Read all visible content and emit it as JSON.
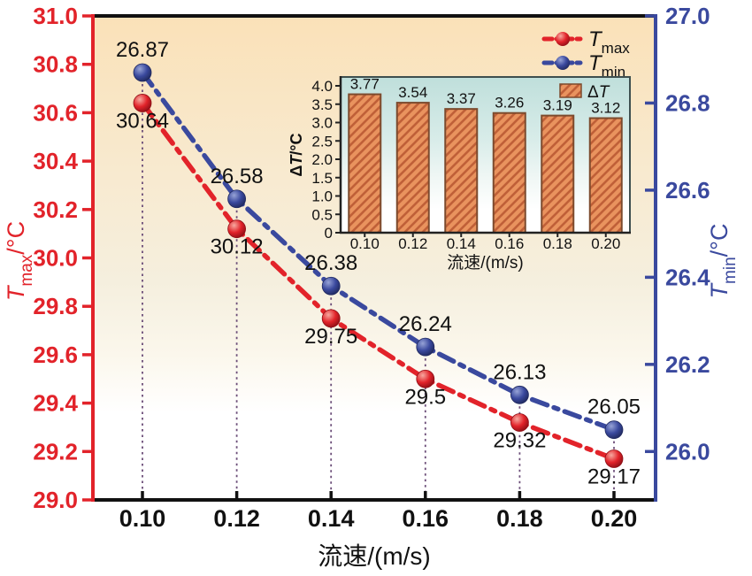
{
  "palette": {
    "red": "#e2232a",
    "blue": "#3a499e",
    "black": "#111111",
    "guide_line": "#6b4d78",
    "plot_bg_stops": [
      "#fae1b8",
      "#f8ead0",
      "#f5efde",
      "#fbf7ec",
      "#ffffff"
    ],
    "inset_bg_stops": [
      "#bfdfdb",
      "#d8ece9",
      "#f0f7f5",
      "#ffffff"
    ],
    "red_ball": [
      "#f6a9a0",
      "#e2232a",
      "#8f0f16"
    ],
    "blue_ball": [
      "#97a3d6",
      "#3a499e",
      "#20295e"
    ],
    "bar_fill": "#e9935e",
    "bar_hatch": "#c06038",
    "bar_border": "#7c4a2d",
    "inset_frame": "#3e4f4f",
    "inset_axis": "#222222"
  },
  "chart_data": {
    "main": {
      "type": "line",
      "x": [
        0.1,
        0.12,
        0.14,
        0.16,
        0.18,
        0.2
      ],
      "x_tick_labels": [
        "0.10",
        "0.12",
        "0.14",
        "0.16",
        "0.18",
        "0.20"
      ],
      "xlabel": "流速/(m/s)",
      "left_axis": {
        "label_parts": [
          {
            "t": "T",
            "i": true
          },
          {
            "t": "max",
            "sub": true
          },
          {
            "t": "/°C"
          }
        ],
        "min": 29.0,
        "max": 31.0,
        "tick_labels": [
          "31.0",
          "30.8",
          "30.6",
          "30.4",
          "30.2",
          "30.0",
          "29.8",
          "29.6",
          "29.4",
          "29.2",
          "29.0"
        ],
        "color": "#e2232a"
      },
      "right_axis": {
        "label_parts": [
          {
            "t": "T",
            "i": true
          },
          {
            "t": "min",
            "sub": true
          },
          {
            "t": "/°C"
          }
        ],
        "max": 27.0,
        "tick_labels": [
          "27.0",
          "26.8",
          "26.6",
          "26.4",
          "26.2",
          "26.0"
        ],
        "color": "#3a499e"
      },
      "series": [
        {
          "name_parts": [
            {
              "t": "T",
              "i": true
            },
            {
              "t": "max",
              "sub": true
            }
          ],
          "axis": "left",
          "color": "#e2232a",
          "ball": "red_ball",
          "values": [
            30.64,
            30.12,
            29.75,
            29.5,
            29.32,
            29.17
          ],
          "point_labels": [
            "30.64",
            "30.12",
            "29.75",
            "29.5",
            "29.32",
            "29.17"
          ],
          "label_side": "below"
        },
        {
          "name_parts": [
            {
              "t": "T",
              "i": true
            },
            {
              "t": "min",
              "sub": true
            }
          ],
          "axis": "right",
          "color": "#3a499e",
          "ball": "blue_ball",
          "values": [
            26.87,
            26.58,
            26.38,
            26.24,
            26.13,
            26.05
          ],
          "point_labels": [
            "26.87",
            "26.58",
            "26.38",
            "26.24",
            "26.13",
            "26.05"
          ],
          "label_side": "above"
        }
      ],
      "legend_position": "top-right",
      "grid": false
    },
    "inset": {
      "type": "bar",
      "categories": [
        "0.10",
        "0.12",
        "0.14",
        "0.16",
        "0.18",
        "0.20"
      ],
      "values": [
        3.77,
        3.54,
        3.37,
        3.26,
        3.19,
        3.12
      ],
      "value_labels": [
        "3.77",
        "3.54",
        "3.37",
        "3.26",
        "3.19",
        "3.12"
      ],
      "xlabel": "流速/(m/s)",
      "ylabel_parts": [
        {
          "t": "Δ"
        },
        {
          "t": "T",
          "i": true
        },
        {
          "t": "/°C"
        }
      ],
      "ylim": [
        0,
        4.0
      ],
      "y_tick_labels": [
        "0",
        "0.5",
        "1.0",
        "1.5",
        "2.0",
        "2.5",
        "3.0",
        "3.5",
        "4.0"
      ],
      "legend_parts": [
        {
          "t": "Δ"
        },
        {
          "t": "T",
          "i": true
        }
      ],
      "legend_position": "top-right"
    }
  }
}
